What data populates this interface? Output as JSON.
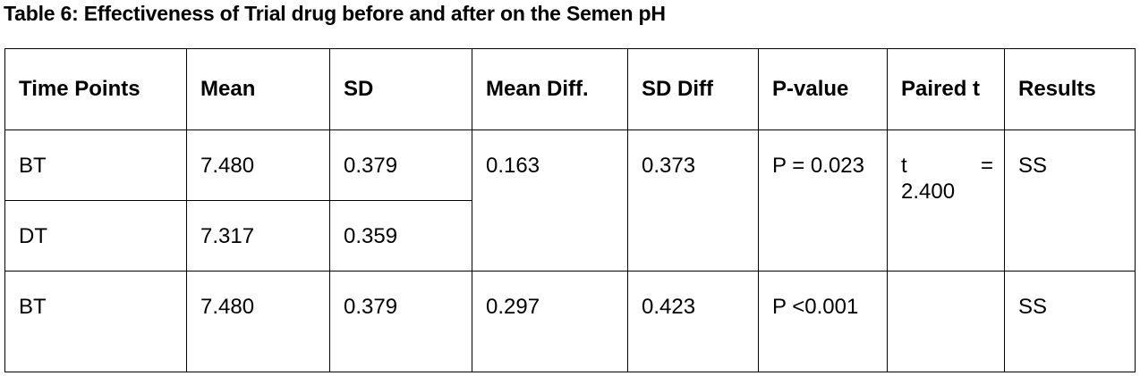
{
  "title": "Table 6: Effectiveness of Trial drug before and after on the Semen pH",
  "headers": [
    "Time Points",
    "Mean",
    "SD",
    "Mean Diff.",
    "SD Diff",
    "P-value",
    "Paired t",
    "Results"
  ],
  "rows": [
    {
      "time_point": "BT",
      "mean": "7.480",
      "sd": "0.379",
      "mean_diff": "0.163",
      "sd_diff": "0.373",
      "p_value": "P = 0.023",
      "paired_t_label": "t",
      "paired_t_eq": "=",
      "paired_t_value": "2.400",
      "result": "SS"
    },
    {
      "time_point": "DT",
      "mean": "7.317",
      "sd": "0.359"
    },
    {
      "time_point": "BT",
      "mean": "7.480",
      "sd": "0.379",
      "mean_diff": "0.297",
      "sd_diff": "0.423",
      "p_value": "P <0.001",
      "paired_t": "",
      "result": "SS"
    }
  ]
}
